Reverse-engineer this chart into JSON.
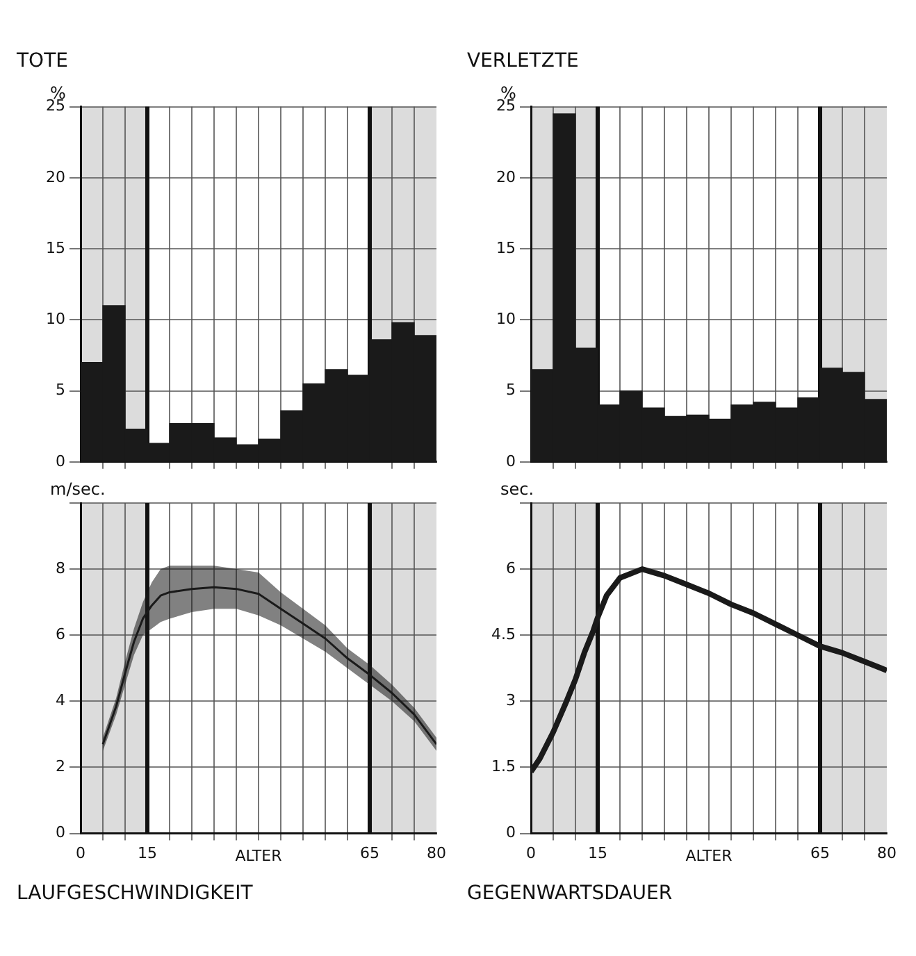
{
  "chart_data": [
    {
      "type": "histogram",
      "title": "TOTE",
      "ylabel": "%",
      "bins": [
        0,
        5,
        10,
        15,
        20,
        25,
        30,
        35,
        40,
        45,
        50,
        55,
        60,
        65,
        70,
        75,
        80
      ],
      "values": [
        7,
        11,
        2.3,
        1.3,
        2.7,
        2.7,
        1.7,
        1.2,
        1.6,
        3.6,
        5.5,
        6.5,
        6.1,
        8.6,
        9.8,
        8.9
      ],
      "color": "#1a1a1a",
      "xlim": [
        0,
        80
      ],
      "ylim": [
        0,
        25
      ],
      "yticks": [
        0,
        5,
        10,
        15,
        20,
        25
      ],
      "xticks": [
        {
          "value": 0,
          "label": null
        },
        {
          "value": 5,
          "label": null
        },
        {
          "value": 10,
          "label": null
        },
        {
          "value": 15,
          "label": null
        },
        {
          "value": 20,
          "label": null
        },
        {
          "value": 25,
          "label": null
        },
        {
          "value": 30,
          "label": null
        },
        {
          "value": 35,
          "label": null
        },
        {
          "value": 40,
          "label": null
        },
        {
          "value": 45,
          "label": null
        },
        {
          "value": 50,
          "label": null
        },
        {
          "value": 55,
          "label": null
        },
        {
          "value": 60,
          "label": null
        },
        {
          "value": 65,
          "label": null
        },
        {
          "value": 70,
          "label": null
        },
        {
          "value": 75,
          "label": null
        },
        {
          "value": 80,
          "label": null
        }
      ],
      "tick_labels": "y",
      "grid": true,
      "bands": [
        {
          "axis": "x",
          "from": 0,
          "to": 15,
          "color": "#dcdcdc"
        },
        {
          "axis": "x",
          "from": 65,
          "to": 80,
          "color": "#dcdcdc"
        }
      ]
    },
    {
      "type": "histogram",
      "title": "VERLETZTE",
      "ylabel": "%",
      "bins": [
        0,
        5,
        10,
        15,
        20,
        25,
        30,
        35,
        40,
        45,
        50,
        55,
        60,
        65,
        70,
        75,
        80
      ],
      "values": [
        6.5,
        24.5,
        8,
        4,
        5,
        3.8,
        3.2,
        3.3,
        3,
        4,
        4.2,
        3.8,
        4.5,
        6.6,
        6.3,
        4.4
      ],
      "color": "#1a1a1a",
      "xlim": [
        0,
        80
      ],
      "ylim": [
        0,
        25
      ],
      "yticks": [
        0,
        5,
        10,
        15,
        20,
        25
      ],
      "xticks": [
        {
          "value": 0,
          "label": null
        },
        {
          "value": 5,
          "label": null
        },
        {
          "value": 10,
          "label": null
        },
        {
          "value": 15,
          "label": null
        },
        {
          "value": 20,
          "label": null
        },
        {
          "value": 25,
          "label": null
        },
        {
          "value": 30,
          "label": null
        },
        {
          "value": 35,
          "label": null
        },
        {
          "value": 40,
          "label": null
        },
        {
          "value": 45,
          "label": null
        },
        {
          "value": 50,
          "label": null
        },
        {
          "value": 55,
          "label": null
        },
        {
          "value": 60,
          "label": null
        },
        {
          "value": 65,
          "label": null
        },
        {
          "value": 70,
          "label": null
        },
        {
          "value": 75,
          "label": null
        },
        {
          "value": 80,
          "label": null
        }
      ],
      "tick_labels": "y",
      "grid": true,
      "bands": [
        {
          "axis": "x",
          "from": 0,
          "to": 15,
          "color": "#dcdcdc"
        },
        {
          "axis": "x",
          "from": 65,
          "to": 80,
          "color": "#dcdcdc"
        }
      ]
    },
    {
      "type": "line",
      "title": "LAUFGESCHWINDIGKEIT",
      "xlabel": "ALTER",
      "ylabel": "m/sec.",
      "series": [
        {
          "color": "#1a1a1a",
          "x": [
            5,
            8,
            10,
            12,
            14,
            16,
            18,
            20,
            25,
            30,
            35,
            40,
            45,
            50,
            55,
            60,
            65,
            70,
            75,
            80
          ],
          "values": [
            2.7,
            3.85,
            4.85,
            5.8,
            6.5,
            6.9,
            7.2,
            7.3,
            7.4,
            7.45,
            7.4,
            7.25,
            6.8,
            6.35,
            5.9,
            5.3,
            4.8,
            4.25,
            3.6,
            2.7
          ],
          "lower": [
            2.5,
            3.6,
            4.5,
            5.4,
            6,
            6.2,
            6.4,
            6.5,
            6.7,
            6.8,
            6.8,
            6.6,
            6.3,
            5.9,
            5.5,
            5,
            4.5,
            4,
            3.4,
            2.5
          ],
          "upper": [
            2.9,
            4.1,
            5.2,
            6.2,
            7,
            7.6,
            8,
            8.1,
            8.1,
            8.1,
            8,
            7.9,
            7.3,
            6.8,
            6.3,
            5.6,
            5.1,
            4.5,
            3.8,
            2.9
          ]
        }
      ],
      "xlim": [
        0,
        80
      ],
      "ylim": [
        0,
        10
      ],
      "yticks": [
        0,
        2,
        4,
        6,
        8,
        {
          "value": 10,
          "label": null
        }
      ],
      "xticks": [
        0,
        {
          "value": 5,
          "label": null
        },
        {
          "value": 10,
          "label": null
        },
        15,
        {
          "value": 20,
          "label": null
        },
        {
          "value": 25,
          "label": null
        },
        {
          "value": 30,
          "label": null
        },
        {
          "value": 35,
          "label": null
        },
        {
          "value": 40,
          "label": null
        },
        {
          "value": 45,
          "label": null
        },
        {
          "value": 50,
          "label": null
        },
        {
          "value": 55,
          "label": null
        },
        {
          "value": 60,
          "label": null
        },
        65,
        {
          "value": 70,
          "label": null
        },
        {
          "value": 75,
          "label": null
        },
        80
      ],
      "grid": true,
      "marker": "none",
      "bands": [
        {
          "axis": "x",
          "from": 0,
          "to": 15,
          "color": "#dcdcdc"
        },
        {
          "axis": "x",
          "from": 65,
          "to": 80,
          "color": "#dcdcdc"
        }
      ]
    },
    {
      "type": "line",
      "title": "GEGENWARTSDAUER",
      "xlabel": "ALTER",
      "ylabel": "sec.",
      "series": [
        {
          "color": "#1a1a1a",
          "x": [
            0,
            2,
            5,
            8,
            10,
            12,
            14,
            15,
            17,
            20,
            25,
            30,
            35,
            40,
            45,
            50,
            55,
            60,
            65,
            70,
            75,
            80
          ],
          "values": [
            1.4,
            1.7,
            2.3,
            3,
            3.5,
            4.1,
            4.6,
            4.9,
            5.4,
            5.8,
            6,
            5.85,
            5.65,
            5.45,
            5.2,
            5,
            4.75,
            4.5,
            4.25,
            4.1,
            3.9,
            3.7
          ]
        }
      ],
      "xlim": [
        0,
        80
      ],
      "ylim": [
        0,
        7.5
      ],
      "yticks": [
        0,
        1.5,
        3,
        4.5,
        6,
        {
          "value": 7.5,
          "label": null
        }
      ],
      "xticks": [
        0,
        {
          "value": 5,
          "label": null
        },
        {
          "value": 10,
          "label": null
        },
        15,
        {
          "value": 20,
          "label": null
        },
        {
          "value": 25,
          "label": null
        },
        {
          "value": 30,
          "label": null
        },
        {
          "value": 35,
          "label": null
        },
        {
          "value": 40,
          "label": null
        },
        {
          "value": 45,
          "label": null
        },
        {
          "value": 50,
          "label": null
        },
        {
          "value": 55,
          "label": null
        },
        {
          "value": 60,
          "label": null
        },
        65,
        {
          "value": 70,
          "label": null
        },
        {
          "value": 75,
          "label": null
        },
        80
      ],
      "grid": true,
      "marker": "none",
      "bands": [
        {
          "axis": "x",
          "from": 0,
          "to": 15,
          "color": "#dcdcdc"
        },
        {
          "axis": "x",
          "from": 65,
          "to": 80,
          "color": "#dcdcdc"
        }
      ]
    }
  ]
}
